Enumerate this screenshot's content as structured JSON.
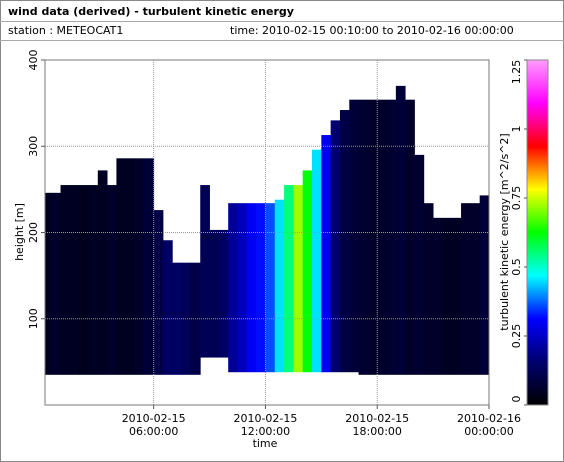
{
  "chart_data": {
    "type": "heatmap",
    "title": "wind data (derived) - turbulent kinetic energy",
    "station": "station : METEOCAT1",
    "period": "time: 2010-02-15 00:10:00 to 2010-02-16 00:00:00",
    "xlabel": "time",
    "ylabel": "height [m]",
    "colorbar_label": "turbulent kinetic energy [m^2/s^2]",
    "xlim": [
      "2010-02-15 00:10:00",
      "2010-02-16 00:00:00"
    ],
    "xticks": [
      "2010-02-15 06:00:00",
      "2010-02-15 12:00:00",
      "2010-02-15 18:00:00",
      "2010-02-16 00:00:00"
    ],
    "ylim": [
      0,
      400
    ],
    "yticks": [
      100,
      200,
      300,
      400
    ],
    "clim": [
      0,
      1.25
    ],
    "cticks": [
      0,
      0.25,
      0.5,
      0.75,
      1,
      1.25
    ],
    "colors": [
      "#000000",
      "#00006e",
      "#0000ff",
      "#00ffff",
      "#00ff00",
      "#ffff00",
      "#ff0000",
      "#ff00ff",
      "#ff9cff"
    ],
    "grid": true,
    "x": [
      "2010-02-15 00:15",
      "2010-02-15 00:45",
      "2010-02-15 01:15",
      "2010-02-15 01:45",
      "2010-02-15 02:15",
      "2010-02-15 02:45",
      "2010-02-15 03:15",
      "2010-02-15 03:45",
      "2010-02-15 04:15",
      "2010-02-15 04:45",
      "2010-02-15 05:15",
      "2010-02-15 05:45",
      "2010-02-15 06:15",
      "2010-02-15 06:45",
      "2010-02-15 07:15",
      "2010-02-15 07:45",
      "2010-02-15 08:15",
      "2010-02-15 08:45",
      "2010-02-15 09:15",
      "2010-02-15 09:45",
      "2010-02-15 10:15",
      "2010-02-15 10:45",
      "2010-02-15 11:15",
      "2010-02-15 11:45",
      "2010-02-15 12:15",
      "2010-02-15 12:45",
      "2010-02-15 13:15",
      "2010-02-15 13:45",
      "2010-02-15 14:15",
      "2010-02-15 14:45",
      "2010-02-15 15:15",
      "2010-02-15 15:45",
      "2010-02-15 16:15",
      "2010-02-15 16:45",
      "2010-02-15 17:15",
      "2010-02-15 17:45",
      "2010-02-15 18:15",
      "2010-02-15 18:45",
      "2010-02-15 19:15",
      "2010-02-15 19:45",
      "2010-02-15 20:15",
      "2010-02-15 20:45",
      "2010-02-15 21:15",
      "2010-02-15 21:45",
      "2010-02-15 22:15",
      "2010-02-15 22:45",
      "2010-02-15 23:15",
      "2010-02-15 23:45"
    ],
    "top": [
      246,
      246,
      255,
      255,
      255,
      255,
      272,
      255,
      286,
      286,
      286,
      286,
      226,
      191,
      165,
      165,
      165,
      255,
      203,
      203,
      234,
      234,
      234,
      234,
      234,
      238,
      255,
      255,
      272,
      296,
      313,
      330,
      342,
      354,
      354,
      354,
      354,
      354,
      370,
      354,
      290,
      234,
      217,
      217,
      217,
      234,
      234,
      243
    ],
    "bottom": [
      35,
      35,
      35,
      35,
      35,
      35,
      35,
      35,
      35,
      35,
      35,
      35,
      35,
      35,
      35,
      35,
      35,
      55,
      55,
      55,
      38,
      38,
      38,
      38,
      38,
      38,
      38,
      38,
      38,
      38,
      38,
      38,
      38,
      38,
      35,
      35,
      35,
      35,
      35,
      35,
      35,
      35,
      35,
      35,
      35,
      35,
      35,
      35
    ],
    "values": [
      0.05,
      0.06,
      0.05,
      0.05,
      0.04,
      0.05,
      0.05,
      0.06,
      0.05,
      0.05,
      0.06,
      0.08,
      0.1,
      0.14,
      0.14,
      0.12,
      0.1,
      0.12,
      0.12,
      0.14,
      0.2,
      0.24,
      0.3,
      0.32,
      0.36,
      0.45,
      0.55,
      0.72,
      0.62,
      0.45,
      0.3,
      0.16,
      0.1,
      0.08,
      0.07,
      0.06,
      0.06,
      0.07,
      0.08,
      0.06,
      0.07,
      0.06,
      0.06,
      0.05,
      0.05,
      0.06,
      0.06,
      0.08
    ]
  }
}
